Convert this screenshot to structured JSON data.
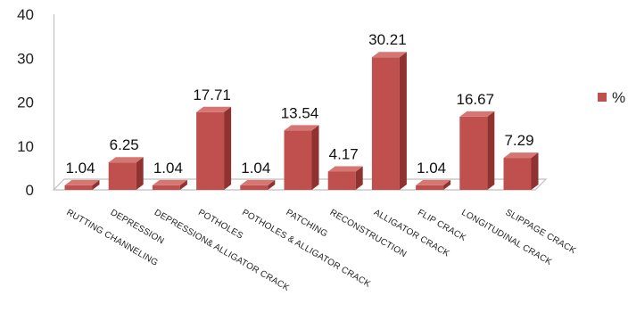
{
  "chart_data": {
    "type": "bar",
    "title": "",
    "xlabel": "",
    "ylabel": "",
    "categories": [
      "RUTTING CHANNELING",
      "DEPRESSION",
      "DEPRESSION& ALLIGATOR CRACK",
      "POTHOLES",
      "POTHOLES & ALLIGATOR CRACK",
      "PATCHING",
      "RECONSTRUCTION",
      "ALLIGATOR CRACK",
      "FLIP CRACK",
      "LONGITUDINAL CRACK",
      "SLIPPAGE CRACK"
    ],
    "series": [
      {
        "name": "%",
        "values": [
          1.04,
          6.25,
          1.04,
          17.71,
          1.04,
          13.54,
          4.17,
          30.21,
          1.04,
          16.67,
          7.29
        ],
        "labels": [
          "1.04",
          "6.25",
          "1.04",
          "17.71",
          "1.04",
          "13.54",
          "4.17",
          "30.21",
          "1.04",
          "16.67",
          "7.29"
        ]
      }
    ],
    "yticks": [
      "0",
      "10",
      "20",
      "30",
      "40"
    ],
    "ylim": [
      0,
      40
    ],
    "grid": false,
    "legend_position": "right",
    "style_3d": true,
    "colors": {
      "bar_front": "#c0504d",
      "bar_side": "#8f3230",
      "bar_top": "#d67673",
      "axis": "#bfbfbf"
    }
  }
}
